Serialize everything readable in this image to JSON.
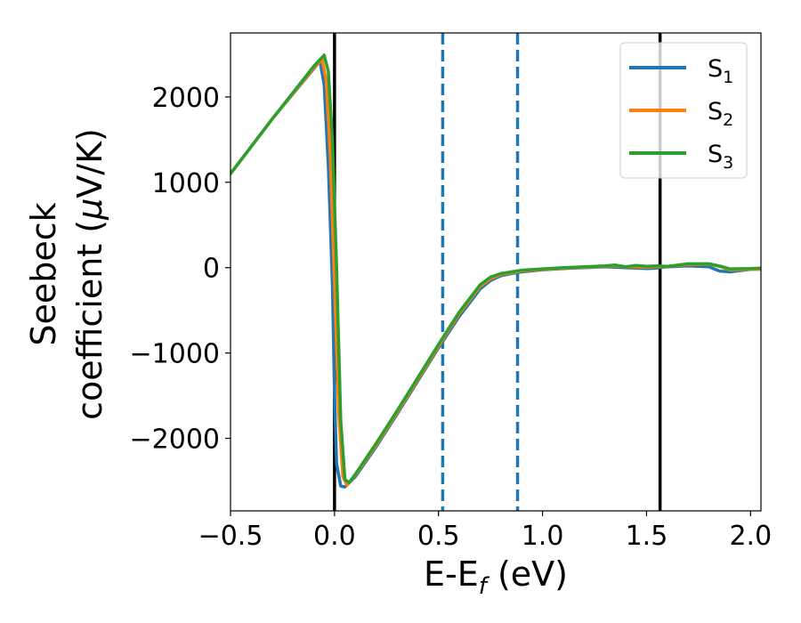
{
  "chart_data": {
    "type": "line",
    "title": "",
    "xlabel": "E-E",
    "xlabel_sub": "f",
    "xlabel_suffix": " (eV)",
    "ylabel_line1": "Seebeck",
    "ylabel_line2_pre": "coefficient  (",
    "ylabel_mu": "μ",
    "ylabel_line2_post": "V/K)",
    "xlim": [
      -0.5,
      2.05
    ],
    "ylim": [
      -2850,
      2750
    ],
    "grid": false,
    "legend_position": "top-right",
    "xticks": [
      -0.5,
      0.0,
      0.5,
      1.0,
      1.5,
      2.0
    ],
    "xtick_labels": [
      "−0.5",
      "0.0",
      "0.5",
      "1.0",
      "1.5",
      "2.0"
    ],
    "yticks": [
      2000,
      1000,
      0,
      -1000,
      -2000
    ],
    "ytick_labels": [
      "2000",
      "1000",
      "0",
      "−1000",
      "−2000"
    ],
    "vlines": [
      {
        "x": 0.0,
        "style": "solid",
        "color": "#000000"
      },
      {
        "x": 1.565,
        "style": "solid",
        "color": "#000000"
      },
      {
        "x": 0.52,
        "style": "dashed",
        "color": "#1f77b4"
      },
      {
        "x": 0.88,
        "style": "dashed",
        "color": "#1f77b4"
      }
    ],
    "series": [
      {
        "name": "S",
        "sub": "1",
        "color": "#1f77b4",
        "x": [
          -0.5,
          -0.3,
          -0.1,
          -0.07,
          -0.05,
          -0.03,
          -0.01,
          0.0,
          0.01,
          0.03,
          0.05,
          0.1,
          0.2,
          0.3,
          0.4,
          0.5,
          0.6,
          0.7,
          0.75,
          0.8,
          0.85,
          0.9,
          1.0,
          1.1,
          1.2,
          1.3,
          1.35,
          1.4,
          1.5,
          1.55,
          1.6,
          1.7,
          1.8,
          1.85,
          1.9,
          2.0,
          2.05
        ],
        "y": [
          1100,
          1740,
          2330,
          2420,
          2150,
          1200,
          -200,
          -1500,
          -2300,
          -2560,
          -2570,
          -2450,
          -2100,
          -1720,
          -1330,
          -940,
          -570,
          -250,
          -150,
          -95,
          -70,
          -50,
          -25,
          -10,
          0,
          10,
          5,
          0,
          -10,
          -5,
          10,
          20,
          10,
          -40,
          -50,
          -20,
          -10
        ]
      },
      {
        "name": "S",
        "sub": "2",
        "color": "#ff7f0e",
        "x": [
          -0.5,
          -0.3,
          -0.1,
          -0.06,
          -0.04,
          -0.02,
          0.0,
          0.02,
          0.04,
          0.06,
          0.1,
          0.2,
          0.3,
          0.4,
          0.5,
          0.6,
          0.7,
          0.75,
          0.8,
          0.85,
          0.9,
          1.0,
          1.1,
          1.2,
          1.3,
          1.35,
          1.4,
          1.5,
          1.55,
          1.6,
          1.7,
          1.8,
          1.85,
          1.9,
          2.0,
          2.05
        ],
        "y": [
          1100,
          1740,
          2340,
          2440,
          2200,
          1300,
          -200,
          -1700,
          -2450,
          -2550,
          -2430,
          -2080,
          -1700,
          -1310,
          -920,
          -540,
          -220,
          -130,
          -80,
          -60,
          -40,
          -20,
          -5,
          5,
          15,
          20,
          10,
          5,
          10,
          15,
          35,
          40,
          15,
          -25,
          -20,
          -20
        ]
      },
      {
        "name": "S",
        "sub": "3",
        "color": "#2ca02c",
        "x": [
          -0.5,
          -0.3,
          -0.1,
          -0.05,
          -0.03,
          -0.01,
          0.01,
          0.03,
          0.05,
          0.07,
          0.1,
          0.2,
          0.3,
          0.4,
          0.5,
          0.6,
          0.7,
          0.75,
          0.8,
          0.85,
          0.9,
          1.0,
          1.1,
          1.2,
          1.3,
          1.35,
          1.4,
          1.45,
          1.5,
          1.55,
          1.6,
          1.7,
          1.8,
          1.85,
          1.9,
          2.0,
          2.05
        ],
        "y": [
          1100,
          1740,
          2360,
          2490,
          2300,
          1500,
          0,
          -1800,
          -2480,
          -2520,
          -2420,
          -2060,
          -1680,
          -1290,
          -900,
          -520,
          -200,
          -110,
          -70,
          -50,
          -30,
          -15,
          0,
          10,
          20,
          30,
          10,
          25,
          15,
          20,
          15,
          45,
          45,
          20,
          -15,
          -10,
          -5
        ]
      }
    ]
  }
}
